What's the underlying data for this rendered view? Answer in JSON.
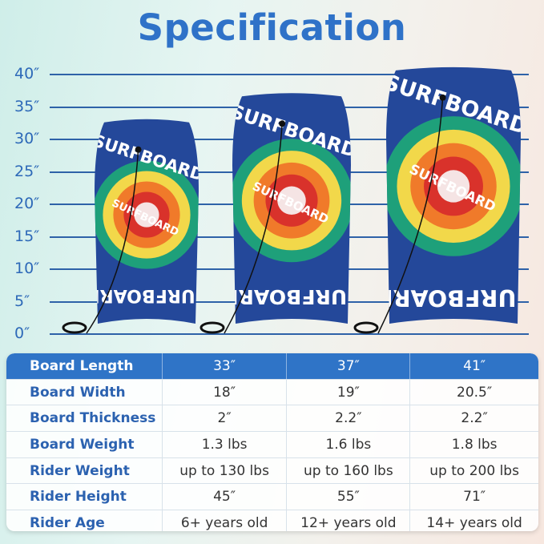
{
  "title": "Specification",
  "scale": {
    "unit_labels": [
      "40″",
      "35″",
      "30″",
      "25″",
      "20″",
      "15″",
      "10″",
      "5″",
      "0″"
    ],
    "color": "#2e62a8"
  },
  "boards": {
    "print_text": "SURFBOARD",
    "lengths_in": [
      33,
      37,
      41
    ]
  },
  "table": {
    "header_color": "#2f74c7",
    "rows": [
      {
        "label": "Board Length",
        "values": [
          "33″",
          "37″",
          "41″"
        ]
      },
      {
        "label": "Board Width",
        "values": [
          "18″",
          "19″",
          "20.5″"
        ]
      },
      {
        "label": "Board Thickness",
        "values": [
          "2″",
          "2.2″",
          "2.2″"
        ]
      },
      {
        "label": "Board Weight",
        "values": [
          "1.3 lbs",
          "1.6 lbs",
          "1.8 lbs"
        ]
      },
      {
        "label": "Rider Weight",
        "values": [
          "up to 130 lbs",
          "up to 160 lbs",
          "up to 200 lbs"
        ]
      },
      {
        "label": "Rider Height",
        "values": [
          "45″",
          "55″",
          "71″"
        ]
      },
      {
        "label": "Rider Age",
        "values": [
          "6+ years old",
          "12+ years old",
          "14+ years old"
        ]
      }
    ]
  }
}
